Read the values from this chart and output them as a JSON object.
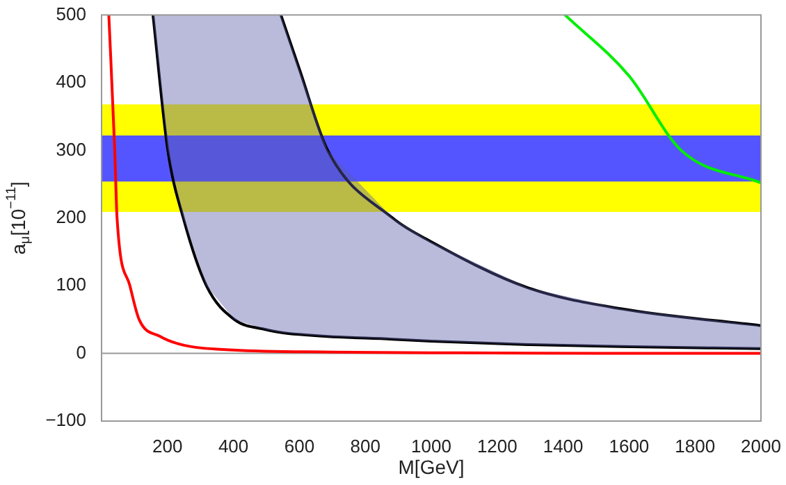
{
  "chart_data": {
    "type": "line",
    "xlabel": "M[GeV]",
    "ylabel": "a$_{μ}$[10$^{−11}$]",
    "xlim": [
      0,
      2000
    ],
    "xticks": [
      200,
      400,
      600,
      800,
      1000,
      1200,
      1400,
      1600,
      1800,
      2000
    ],
    "ylim": [
      -100,
      500
    ],
    "yticks": [
      -100,
      0,
      100,
      200,
      300,
      400,
      500
    ],
    "grid": false,
    "legend": false,
    "marker": "none",
    "line_style": "solid",
    "bands": [
      {
        "axis": "y",
        "from": 209,
        "to": 368,
        "color": "#ffff00"
      },
      {
        "axis": "y",
        "from": 254,
        "to": 322,
        "color": "#5555ff"
      }
    ],
    "ref_lines": [
      {
        "axis": "y",
        "value": 0,
        "color": "#999999"
      }
    ],
    "series": [
      {
        "color": "#ff0000",
        "x": [
          22,
          40,
          47,
          86,
          114,
          178,
          250,
          400,
          700,
          1000,
          1500,
          2000
        ],
        "values": [
          500,
          300,
          200,
          100,
          50,
          25,
          12,
          5,
          2,
          1,
          0,
          0
        ]
      },
      {
        "color": "#000000",
        "x": [
          156,
          201,
          248,
          318,
          403,
          500,
          544,
          600,
          686,
          883,
          1000,
          1293,
          1575,
          2000
        ],
        "values": [
          500,
          300,
          200,
          100,
          50,
          35,
          31,
          28,
          25,
          21,
          18,
          13,
          10,
          7
        ],
        "lower": [
          500,
          300,
          200,
          100,
          50,
          35,
          31,
          28,
          25,
          21,
          18,
          13,
          10,
          7
        ],
        "upper": [
          500,
          500,
          500,
          500,
          500,
          500,
          500,
          420,
          300,
          200,
          165,
          97,
          66,
          41
        ]
      },
      {
        "color": "#000000",
        "x": [
          544,
          600,
          686,
          883,
          1000,
          1293,
          1575,
          2000
        ],
        "values": [
          500,
          420,
          300,
          200,
          165,
          97,
          66,
          41
        ]
      },
      {
        "color": "#00ee00",
        "x": [
          1406,
          1600,
          1758,
          2000
        ],
        "values": [
          500,
          410,
          300,
          252
        ]
      }
    ]
  }
}
